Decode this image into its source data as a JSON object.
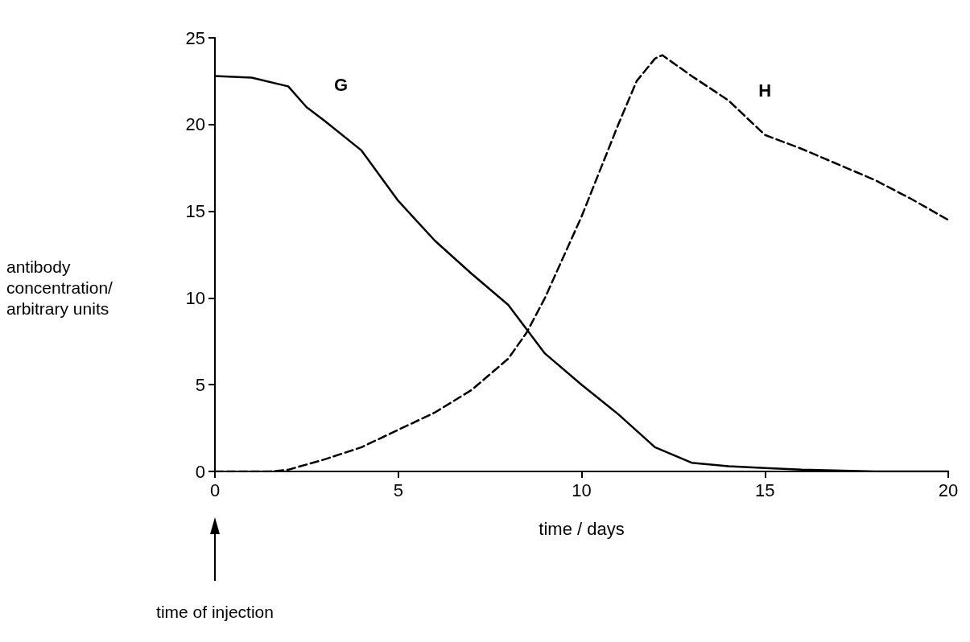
{
  "chart_data": {
    "type": "line",
    "xlabel": "time / days",
    "ylabel": "antibody\nconcentration/\narbitrary units",
    "xlim": [
      0,
      20
    ],
    "xticks": [
      0,
      5,
      10,
      15,
      20
    ],
    "ylim": [
      0,
      25
    ],
    "yticks": [
      0,
      5,
      10,
      15,
      20,
      25
    ],
    "grid": false,
    "marker": "none",
    "series": [
      {
        "name": "G",
        "color": "#000000",
        "line_style": "solid",
        "x": [
          0,
          1,
          2,
          2.5,
          3,
          4,
          5,
          6,
          7,
          8,
          9,
          10,
          11,
          12,
          13,
          14,
          15,
          16,
          18,
          20
        ],
        "values": [
          22.8,
          22.7,
          22.2,
          21,
          20.2,
          18.5,
          15.6,
          13.3,
          11.4,
          9.6,
          6.8,
          5,
          3.3,
          1.4,
          0.5,
          0.3,
          0.2,
          0.1,
          0,
          0
        ]
      },
      {
        "name": "H",
        "color": "#000000",
        "line_style": "dashed",
        "x": [
          0,
          1,
          1.5,
          2,
          3,
          4,
          5,
          6,
          7,
          8,
          8.5,
          9,
          10,
          11,
          11.5,
          12,
          12.2,
          13,
          14,
          15,
          16,
          17,
          18,
          19,
          20
        ],
        "values": [
          0,
          0,
          0,
          0.1,
          0.7,
          1.4,
          2.4,
          3.4,
          4.7,
          6.5,
          8,
          10,
          14.7,
          20,
          22.5,
          23.8,
          24,
          22.8,
          21.4,
          19.4,
          18.6,
          17.7,
          16.8,
          15.7,
          14.5
        ]
      }
    ],
    "annotations": [
      "time of injection"
    ]
  }
}
